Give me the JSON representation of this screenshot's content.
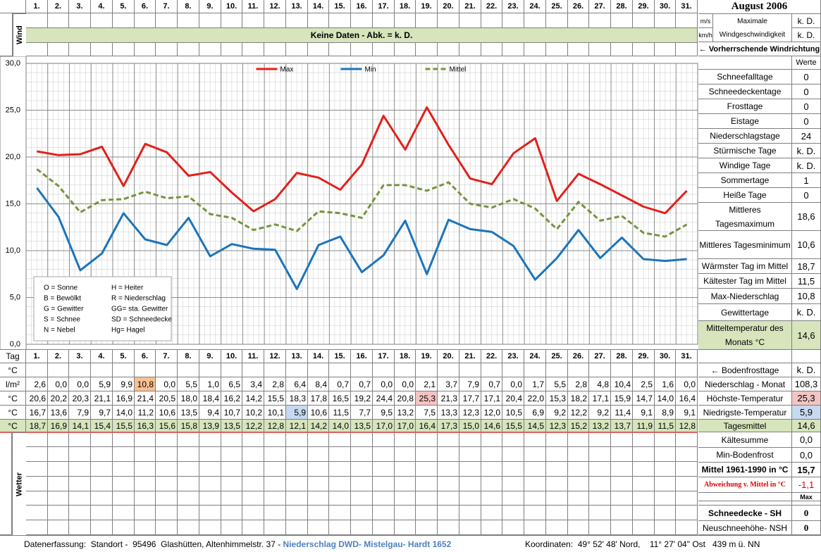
{
  "header": {
    "month": "August 2006",
    "wind_label": "Wind",
    "no_data": "Keine Daten - Abk. = k. D.",
    "unit_ms": "m/s",
    "unit_kmh": "km/h",
    "max_wind_1": "Maximale",
    "max_wind_2": "Windgeschwindigkeit",
    "max_wind_ms": "k. D.",
    "max_wind_kmh": "k. D.",
    "wind_direction": "← Vorherrschende Windrichtung",
    "values_header": "Werte"
  },
  "chart_data": {
    "type": "line",
    "categories": [
      "1.",
      "2.",
      "3.",
      "4.",
      "5.",
      "6.",
      "7.",
      "8.",
      "9.",
      "10.",
      "11.",
      "12.",
      "13.",
      "14.",
      "15.",
      "16.",
      "17.",
      "18.",
      "19.",
      "20.",
      "21.",
      "22.",
      "23.",
      "24.",
      "25.",
      "26.",
      "27.",
      "28.",
      "29.",
      "30.",
      "31."
    ],
    "series": [
      {
        "name": "Max",
        "color": "#e3201b",
        "style": "solid",
        "values": [
          20.6,
          20.2,
          20.3,
          21.1,
          16.9,
          21.4,
          20.5,
          18.0,
          18.4,
          16.2,
          14.2,
          15.5,
          18.3,
          17.8,
          16.5,
          19.2,
          24.4,
          20.8,
          25.3,
          21.3,
          17.7,
          17.1,
          20.4,
          22.0,
          15.3,
          18.2,
          17.1,
          15.9,
          14.7,
          14.0,
          16.4
        ],
        "value_labels": [
          "20,6",
          "20,2",
          "20,3",
          "21,1",
          "16,9",
          "21,4",
          "20,5",
          "18,0",
          "18,4",
          "16,2",
          "14,2",
          "15,5",
          "18,3",
          "17,8",
          "16,5",
          "19,2",
          "24,4",
          "20,8",
          "25,3",
          "21,3",
          "17,7",
          "17,1",
          "20,4",
          "22,0",
          "15,3",
          "18,2",
          "17,1",
          "15,9",
          "14,7",
          "14,0",
          "16,4"
        ]
      },
      {
        "name": "Min",
        "color": "#1b75bb",
        "style": "solid",
        "values": [
          16.7,
          13.6,
          7.9,
          9.7,
          14.0,
          11.2,
          10.6,
          13.5,
          9.4,
          10.7,
          10.2,
          10.1,
          5.9,
          10.6,
          11.5,
          7.7,
          9.5,
          13.2,
          7.5,
          13.3,
          12.3,
          12.0,
          10.5,
          6.9,
          9.2,
          12.2,
          9.2,
          11.4,
          9.1,
          8.9,
          9.1
        ],
        "value_labels": [
          "16,7",
          "13,6",
          "7,9",
          "9,7",
          "14,0",
          "11,2",
          "10,6",
          "13,5",
          "9,4",
          "10,7",
          "10,2",
          "10,1",
          "5,9",
          "10,6",
          "11,5",
          "7,7",
          "9,5",
          "13,2",
          "7,5",
          "13,3",
          "12,3",
          "12,0",
          "10,5",
          "6,9",
          "9,2",
          "12,2",
          "9,2",
          "11,4",
          "9,1",
          "8,9",
          "9,1"
        ]
      },
      {
        "name": "Mittel",
        "color": "#77933c",
        "style": "dashed",
        "values": [
          18.7,
          16.9,
          14.1,
          15.4,
          15.5,
          16.3,
          15.6,
          15.8,
          13.9,
          13.5,
          12.2,
          12.8,
          12.1,
          14.2,
          14.0,
          13.5,
          17.0,
          17.0,
          16.4,
          17.3,
          15.0,
          14.6,
          15.5,
          14.5,
          12.3,
          15.2,
          13.2,
          13.7,
          11.9,
          11.5,
          12.8
        ],
        "value_labels": [
          "18,7",
          "16,9",
          "14,1",
          "15,4",
          "15,5",
          "16,3",
          "15,6",
          "15,8",
          "13,9",
          "13,5",
          "12,2",
          "12,8",
          "12,1",
          "14,2",
          "14,0",
          "13,5",
          "17,0",
          "17,0",
          "16,4",
          "17,3",
          "15,0",
          "14,6",
          "15,5",
          "14,5",
          "12,3",
          "15,2",
          "13,2",
          "13,7",
          "11,9",
          "11,5",
          "12,8"
        ]
      }
    ],
    "ylim": [
      0,
      30
    ],
    "yticks": [
      {
        "value": 0,
        "label": "0,0"
      },
      {
        "value": 5,
        "label": "5,0"
      },
      {
        "value": 10,
        "label": "10,0"
      },
      {
        "value": 15,
        "label": "15,0"
      },
      {
        "value": 20,
        "label": "20,0"
      },
      {
        "value": 25,
        "label": "25,0"
      },
      {
        "value": 30,
        "label": "30,0"
      }
    ],
    "grid": true,
    "legend": "top"
  },
  "weather_legend": [
    [
      "O = Sonne",
      "H = Heiter"
    ],
    [
      "B = Bewölkt",
      "R = Niederschlag"
    ],
    [
      "G = Gewitter",
      "GG= sta. Gewitter"
    ],
    [
      "S = Schnee",
      "SD = Schneedecke"
    ],
    [
      "N = Nebel",
      "Hg= Hagel"
    ]
  ],
  "stats": [
    {
      "label": "Schneefalltage",
      "value": "0"
    },
    {
      "label": "Schneedeckentage",
      "value": "0"
    },
    {
      "label": "Frosttage",
      "value": "0"
    },
    {
      "label": "Eistage",
      "value": "0"
    },
    {
      "label": "Niederschlagstage",
      "value": "24"
    },
    {
      "label": "Stürmische Tage",
      "value": "k. D."
    },
    {
      "label": "Windige Tage",
      "value": "k. D."
    },
    {
      "label": "Sommertage",
      "value": "1"
    },
    {
      "label": "Heiße Tage",
      "value": "0"
    },
    {
      "label": "Mittleres Tagesmaximum",
      "value": "18,6"
    },
    {
      "label": "Mittleres Tagesminimum",
      "value": "10,6"
    },
    {
      "label": "Wärmster Tag im Mittel",
      "value": "18,7"
    },
    {
      "label": "Kältester Tag im Mittel",
      "value": "11,5"
    },
    {
      "label": "Max-Niederschlag",
      "value": "10,8"
    },
    {
      "label": "Gewittertage",
      "value": "k. D."
    },
    {
      "label": "Mitteltemperatur des Monats °C",
      "value": "14,6"
    }
  ],
  "daily": {
    "tag_label": "Tag",
    "weather_label": "Wetter",
    "units": [
      "°C",
      "l/m²",
      "°C",
      "°C",
      "°C"
    ],
    "precipitation": [
      "2,6",
      "0,0",
      "0,0",
      "5,9",
      "9,9",
      "10,8",
      "0,0",
      "5,5",
      "1,0",
      "6,5",
      "3,4",
      "2,8",
      "6,4",
      "8,4",
      "0,7",
      "0,7",
      "0,0",
      "0,0",
      "2,1",
      "3,7",
      "7,9",
      "0,7",
      "0,0",
      "1,7",
      "5,5",
      "2,8",
      "4,8",
      "10,4",
      "2,5",
      "1,6",
      "0,0"
    ]
  },
  "summary": [
    {
      "label": "← Bodenfrosttage",
      "value": "k. D."
    },
    {
      "label": "Niederschlag - Monat",
      "value": "108,3"
    },
    {
      "label": "Höchste-Temperatur",
      "value": "25,3"
    },
    {
      "label": "Niedrigste-Temperatur",
      "value": "5,9"
    },
    {
      "label": "Tagesmittel",
      "value": "14,6"
    },
    {
      "label": "Kältesumme",
      "value": "0,0"
    },
    {
      "label": "Min-Bodenfrost",
      "value": "0,0"
    },
    {
      "label": "Mittel 1961-1990 in °C",
      "value": "15,7"
    },
    {
      "label": "Abweichung v. Mittel in °C",
      "value": "-1,1"
    },
    {
      "value": "Max"
    },
    {
      "label": "Schneedecke -  SH",
      "value": "0"
    },
    {
      "label": "Neuschneehöhe- NSH",
      "value": "0"
    }
  ],
  "footer": {
    "left": "Datenerfassung:  Standort -  95496  Glashütten, Altenhimmelstr. 37 - ",
    "source": "Niederschlag DWD- Mistelgau- Hardt 1652",
    "coordinates": "Koordinaten:  49° 52' 48' Nord,    11° 27' 04\" Ost   439 m ü. NN"
  }
}
